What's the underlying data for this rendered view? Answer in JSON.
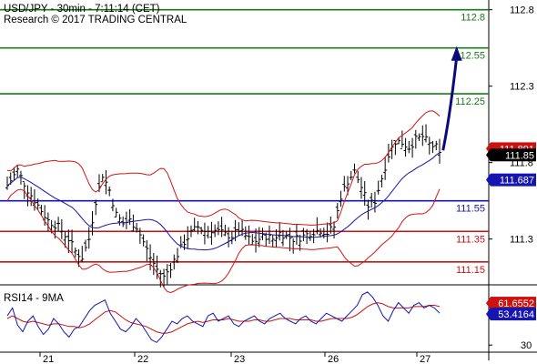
{
  "header": {
    "line1": "USD/JPY - 30min - 7:11:14 (CET)",
    "line2": "Research © 2017 TRADING CENTRAL"
  },
  "rsi_label": "RSI14 - 9MA",
  "colors": {
    "resistance": "#1a7a1a",
    "support": "#cc1111",
    "pivot": "#1515b0",
    "bands": "#d41414",
    "ma": "#1515b0",
    "bars": "#000000",
    "arrow": "#0a0a7a",
    "rsi": "#1515b0",
    "rsi_ma": "#cc1111",
    "axis_text": "#000000"
  },
  "chart_data": [
    {
      "type": "ohlc",
      "panel": "price",
      "ylim": [
        111.03,
        112.84
      ],
      "y_ticks": [
        "111.3",
        "111.8",
        "112.3",
        "112.8"
      ],
      "x_labels": [
        "21",
        "22",
        "23",
        "26",
        "27"
      ],
      "levels": [
        {
          "value": "112.8",
          "y": 112.8,
          "role": "resistance"
        },
        {
          "value": "112.55",
          "y": 112.55,
          "role": "resistance"
        },
        {
          "value": "112.25",
          "y": 112.25,
          "role": "resistance"
        },
        {
          "value": "111.55",
          "y": 111.55,
          "role": "pivot"
        },
        {
          "value": "111.35",
          "y": 111.35,
          "role": "support"
        },
        {
          "value": "111.15",
          "y": 111.15,
          "role": "support"
        }
      ],
      "price_boxes": [
        {
          "value": "111.891",
          "y": 111.891,
          "bg": "#cc1111",
          "fg": "#ffffff"
        },
        {
          "value": "111.85",
          "y": 111.85,
          "bg": "#000000",
          "fg": "#ffffff"
        },
        {
          "value": "111.687",
          "y": 111.687,
          "bg": "#1515b0",
          "fg": "#ffffff"
        }
      ],
      "close_path": [
        [
          0,
          111.65
        ],
        [
          3,
          111.75
        ],
        [
          6,
          111.62
        ],
        [
          9,
          111.52
        ],
        [
          12,
          111.42
        ],
        [
          15,
          111.38
        ],
        [
          18,
          111.3
        ],
        [
          20,
          111.22
        ],
        [
          22,
          111.18
        ],
        [
          24,
          111.3
        ],
        [
          26,
          111.55
        ],
        [
          28,
          111.72
        ],
        [
          30,
          111.62
        ],
        [
          32,
          111.46
        ],
        [
          34,
          111.4
        ],
        [
          36,
          111.42
        ],
        [
          38,
          111.38
        ],
        [
          40,
          111.28
        ],
        [
          42,
          111.18
        ],
        [
          44,
          111.1
        ],
        [
          46,
          111.05
        ],
        [
          48,
          111.12
        ],
        [
          50,
          111.2
        ],
        [
          52,
          111.28
        ],
        [
          54,
          111.34
        ],
        [
          56,
          111.38
        ],
        [
          58,
          111.35
        ],
        [
          60,
          111.36
        ],
        [
          62,
          111.35
        ],
        [
          64,
          111.33
        ],
        [
          66,
          111.32
        ],
        [
          68,
          111.36
        ],
        [
          70,
          111.32
        ],
        [
          72,
          111.28
        ],
        [
          74,
          111.3
        ],
        [
          76,
          111.32
        ],
        [
          78,
          111.3
        ],
        [
          80,
          111.34
        ],
        [
          82,
          111.32
        ],
        [
          84,
          111.3
        ],
        [
          86,
          111.31
        ],
        [
          88,
          111.33
        ],
        [
          90,
          111.35
        ],
        [
          92,
          111.36
        ],
        [
          94,
          111.34
        ],
        [
          96,
          111.38
        ],
        [
          98,
          111.58
        ],
        [
          100,
          111.68
        ],
        [
          102,
          111.74
        ],
        [
          104,
          111.64
        ],
        [
          106,
          111.52
        ],
        [
          108,
          111.55
        ],
        [
          110,
          111.7
        ],
        [
          112,
          111.85
        ],
        [
          114,
          111.94
        ],
        [
          116,
          111.93
        ],
        [
          118,
          111.9
        ],
        [
          120,
          111.95
        ],
        [
          122,
          111.97
        ],
        [
          124,
          111.92
        ],
        [
          126,
          111.9
        ],
        [
          127,
          111.85
        ]
      ],
      "arrow": {
        "from": [
          128,
          111.88
        ],
        "to": [
          132,
          112.55
        ]
      },
      "bar_count": 128
    },
    {
      "type": "line",
      "panel": "rsi",
      "ylim": [
        26,
        72
      ],
      "y_ticks": [
        "30"
      ],
      "price_boxes": [
        {
          "value": "61.6552",
          "y": 61.6552,
          "bg": "#cc1111",
          "fg": "#ffffff"
        },
        {
          "value": "53.4164",
          "y": 53.4164,
          "bg": "#1515b0",
          "fg": "#ffffff"
        }
      ],
      "series": [
        {
          "role": "rsi",
          "values": [
            52,
            58,
            45,
            40,
            48,
            52,
            44,
            38,
            42,
            50,
            46,
            40,
            36,
            42,
            44,
            50,
            56,
            60,
            62,
            64,
            54,
            48,
            42,
            40,
            44,
            50,
            46,
            40,
            34,
            32,
            36,
            42,
            48,
            46,
            50,
            52,
            48,
            46,
            44,
            52,
            54,
            48,
            50,
            52,
            46,
            44,
            48,
            50,
            52,
            48,
            46,
            50,
            52,
            54,
            50,
            48,
            46,
            50,
            52,
            48,
            46,
            50,
            54,
            52,
            50,
            48,
            52,
            56,
            60,
            68,
            70,
            66,
            60,
            52,
            48,
            56,
            62,
            58,
            54,
            60,
            62,
            58,
            60,
            58,
            54
          ]
        },
        {
          "role": "rsi_ma",
          "values": [
            50,
            52,
            50,
            48,
            47,
            48,
            47,
            46,
            45,
            46,
            46,
            45,
            44,
            44,
            43,
            44,
            46,
            49,
            52,
            55,
            56,
            55,
            52,
            49,
            47,
            46,
            45,
            44,
            42,
            40,
            39,
            39,
            40,
            42,
            44,
            46,
            47,
            48,
            47,
            48,
            49,
            49,
            49,
            50,
            49,
            48,
            48,
            48,
            49,
            49,
            48,
            48,
            49,
            50,
            50,
            50,
            49,
            49,
            49,
            49,
            48,
            48,
            49,
            50,
            50,
            50,
            50,
            51,
            53,
            56,
            59,
            61,
            62,
            61,
            59,
            58,
            58,
            58,
            58,
            59,
            59,
            59,
            60,
            60,
            59
          ]
        }
      ]
    }
  ]
}
